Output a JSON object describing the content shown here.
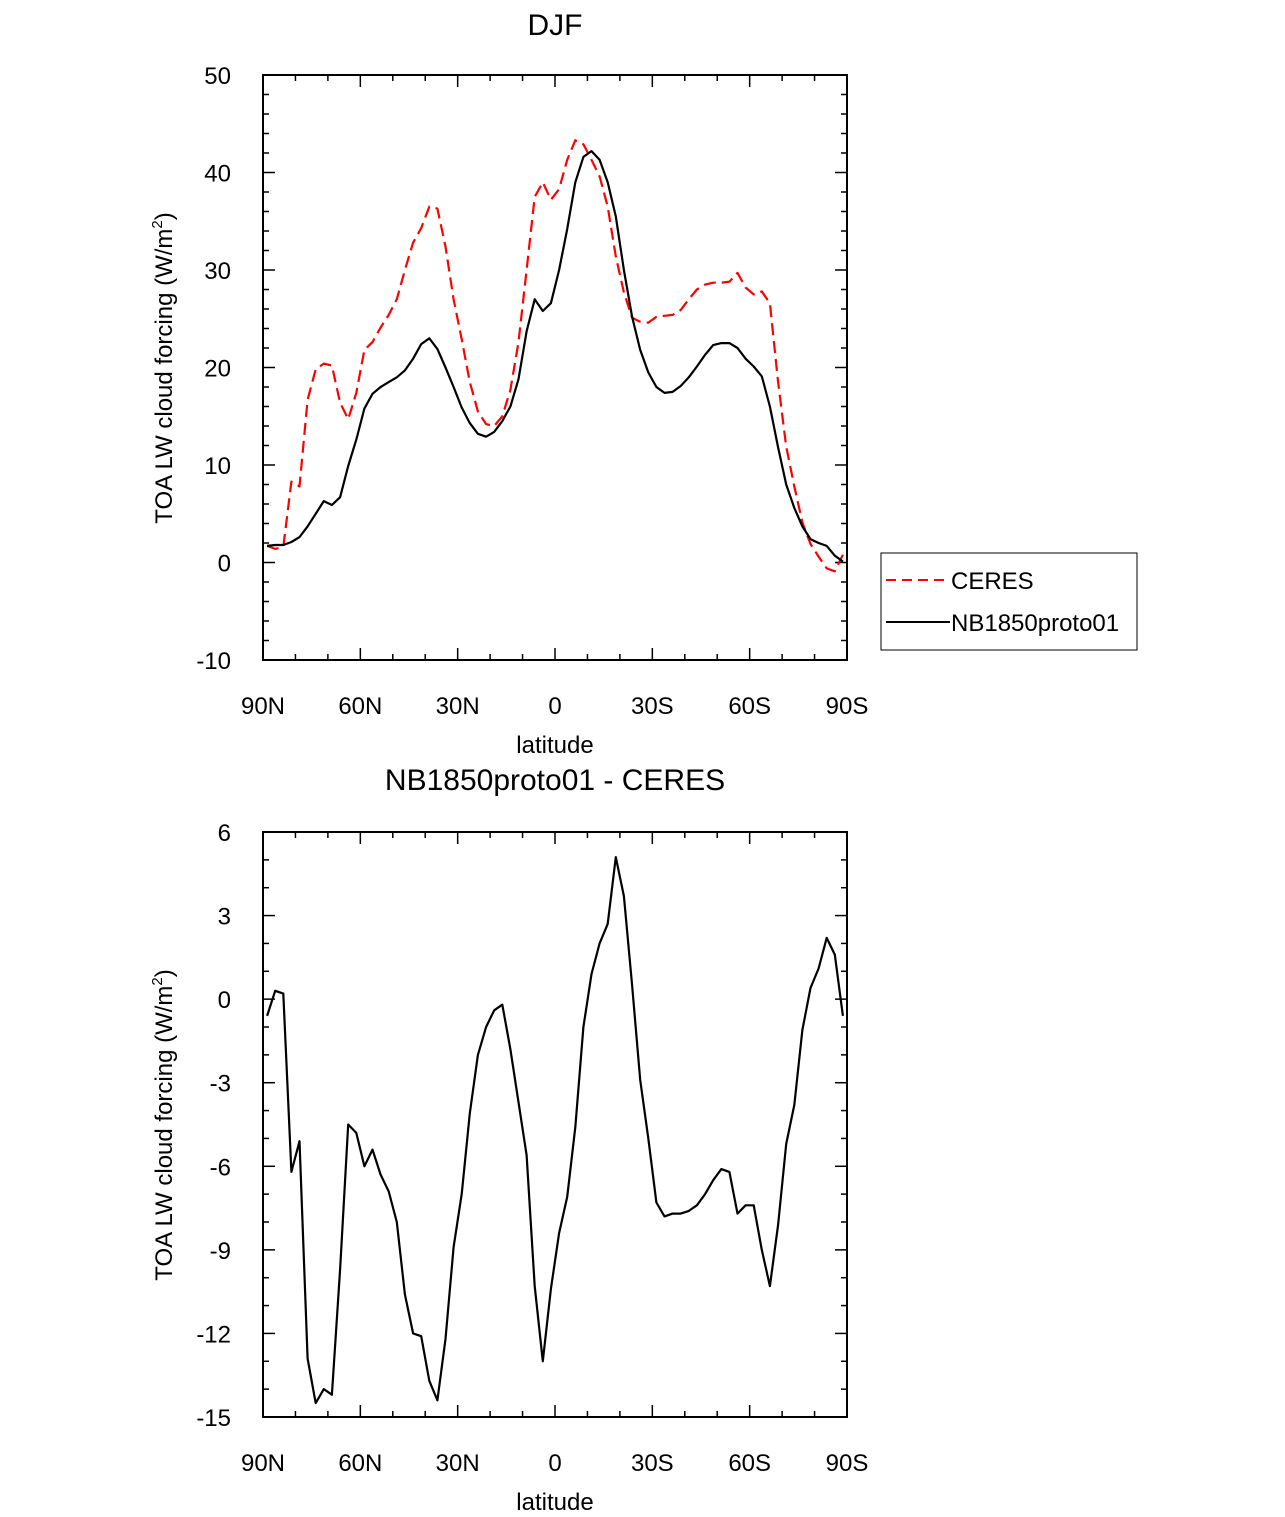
{
  "chart_data": [
    {
      "type": "line",
      "title": "DJF",
      "xlabel": "latitude",
      "ylabel": "TOA LW cloud forcing (W/m²)",
      "ylabel_parts": {
        "main": "TOA LW cloud forcing (W/m",
        "sup": "2",
        "end": ")"
      },
      "xlim": [
        90,
        -90
      ],
      "ylim": [
        -10,
        50
      ],
      "yticks": [
        -10,
        0,
        10,
        20,
        30,
        40,
        50
      ],
      "xticks": [
        {
          "v": 90,
          "label": "90N"
        },
        {
          "v": 60,
          "label": "60N"
        },
        {
          "v": 30,
          "label": "30N"
        },
        {
          "v": 0,
          "label": "0"
        },
        {
          "v": -30,
          "label": "30S"
        },
        {
          "v": -60,
          "label": "60S"
        },
        {
          "v": -90,
          "label": "90S"
        }
      ],
      "legend": {
        "placement": "right",
        "entries": [
          {
            "name": "CERES",
            "color": "#ff0000",
            "dash": true
          },
          {
            "name": "NB1850proto01",
            "color": "#000000",
            "dash": false
          }
        ]
      },
      "x": [
        88.75,
        86.25,
        83.75,
        81.25,
        78.75,
        76.25,
        73.75,
        71.25,
        68.75,
        66.25,
        63.75,
        61.25,
        58.75,
        56.25,
        53.75,
        51.25,
        48.75,
        46.25,
        43.75,
        41.25,
        38.75,
        36.25,
        33.75,
        31.25,
        28.75,
        26.25,
        23.75,
        21.25,
        18.75,
        16.25,
        13.75,
        11.25,
        8.75,
        6.25,
        3.75,
        1.25,
        -1.25,
        -3.75,
        -6.25,
        -8.75,
        -11.25,
        -13.75,
        -16.25,
        -18.75,
        -21.25,
        -23.75,
        -26.25,
        -28.75,
        -31.25,
        -33.75,
        -36.25,
        -38.75,
        -41.25,
        -43.75,
        -46.25,
        -48.75,
        -51.25,
        -53.75,
        -56.25,
        -58.75,
        -61.25,
        -63.75,
        -66.25,
        -68.75,
        -71.25,
        -73.75,
        -76.25,
        -78.75,
        -81.25,
        -83.75,
        -86.25,
        -88.75
      ],
      "series": [
        {
          "name": "CERES",
          "color": "#ff0000",
          "values": [
            1.7,
            1.4,
            1.6,
            8.3,
            7.8,
            16.7,
            19.8,
            20.4,
            20.2,
            16.4,
            14.7,
            17.4,
            21.8,
            22.6,
            24.1,
            25.4,
            27.0,
            30.0,
            32.8,
            34.3,
            36.5,
            36.3,
            32.4,
            27.0,
            22.9,
            18.5,
            15.5,
            14.2,
            14.0,
            15.0,
            17.7,
            22.6,
            30.0,
            37.5,
            39.0,
            37.2,
            38.3,
            41.3,
            43.3,
            42.9,
            41.3,
            39.6,
            36.5,
            31.4,
            27.7,
            25.1,
            24.7,
            24.6,
            25.2,
            25.3,
            25.4,
            25.9,
            27.0,
            28.0,
            28.5,
            28.7,
            28.7,
            28.8,
            29.7,
            28.2,
            27.5,
            27.8,
            26.6,
            18.5,
            11.9,
            7.8,
            4.1,
            1.9,
            0.6,
            -0.6,
            -0.9,
            0.8
          ]
        },
        {
          "name": "NB1850proto01",
          "color": "#000000",
          "values": [
            1.7,
            1.8,
            1.8,
            2.1,
            2.6,
            3.7,
            5.0,
            6.3,
            5.9,
            6.7,
            9.9,
            12.6,
            15.8,
            17.3,
            18.0,
            18.5,
            19.0,
            19.7,
            20.9,
            22.4,
            23.0,
            21.9,
            20.0,
            18.0,
            15.9,
            14.3,
            13.2,
            12.9,
            13.4,
            14.5,
            16.0,
            18.8,
            23.7,
            27.0,
            25.8,
            26.6,
            30.0,
            34.2,
            39.0,
            41.6,
            42.2,
            41.3,
            39.0,
            35.5,
            30.0,
            25.2,
            21.8,
            19.5,
            18.0,
            17.4,
            17.5,
            18.1,
            19.0,
            20.1,
            21.3,
            22.3,
            22.5,
            22.5,
            22.0,
            20.9,
            20.1,
            19.1,
            16.0,
            11.8,
            8.0,
            5.6,
            3.7,
            2.4,
            2.0,
            1.7,
            0.7,
            0.1
          ]
        }
      ]
    },
    {
      "type": "line",
      "title": "NB1850proto01 - CERES",
      "xlabel": "latitude",
      "ylabel": "TOA LW cloud forcing (W/m²)",
      "ylabel_parts": {
        "main": "TOA LW cloud forcing (W/m",
        "sup": "2",
        "end": ")"
      },
      "xlim": [
        90,
        -90
      ],
      "ylim": [
        -15,
        6
      ],
      "yticks": [
        -15,
        -12,
        -9,
        -6,
        -3,
        0,
        3,
        6
      ],
      "xticks": [
        {
          "v": 90,
          "label": "90N"
        },
        {
          "v": 60,
          "label": "60N"
        },
        {
          "v": 30,
          "label": "30N"
        },
        {
          "v": 0,
          "label": "0"
        },
        {
          "v": -30,
          "label": "30S"
        },
        {
          "v": -60,
          "label": "60S"
        },
        {
          "v": -90,
          "label": "90S"
        }
      ],
      "x": [
        88.75,
        86.25,
        83.75,
        81.25,
        78.75,
        76.25,
        73.75,
        71.25,
        68.75,
        66.25,
        63.75,
        61.25,
        58.75,
        56.25,
        53.75,
        51.25,
        48.75,
        46.25,
        43.75,
        41.25,
        38.75,
        36.25,
        33.75,
        31.25,
        28.75,
        26.25,
        23.75,
        21.25,
        18.75,
        16.25,
        13.75,
        11.25,
        8.75,
        6.25,
        3.75,
        1.25,
        -1.25,
        -3.75,
        -6.25,
        -8.75,
        -11.25,
        -13.75,
        -16.25,
        -18.75,
        -21.25,
        -23.75,
        -26.25,
        -28.75,
        -31.25,
        -33.75,
        -36.25,
        -38.75,
        -41.25,
        -43.75,
        -46.25,
        -48.75,
        -51.25,
        -53.75,
        -56.25,
        -58.75,
        -61.25,
        -63.75,
        -66.25,
        -68.75,
        -71.25,
        -73.75,
        -76.25,
        -78.75,
        -81.25,
        -83.75,
        -86.25,
        -88.75
      ],
      "series": [
        {
          "name": "NB1850proto01 - CERES",
          "color": "#000000",
          "values": [
            -0.6,
            0.3,
            0.2,
            -6.2,
            -5.1,
            -12.9,
            -14.5,
            -14.0,
            -14.2,
            -9.7,
            -4.5,
            -4.8,
            -6.0,
            -5.4,
            -6.3,
            -6.9,
            -8.0,
            -10.6,
            -12.0,
            -12.1,
            -13.7,
            -14.4,
            -12.2,
            -8.9,
            -7.0,
            -4.1,
            -2.0,
            -1.0,
            -0.4,
            -0.2,
            -1.8,
            -3.7,
            -5.6,
            -10.3,
            -13.0,
            -10.4,
            -8.4,
            -7.1,
            -4.6,
            -1.0,
            0.9,
            2.0,
            2.7,
            5.1,
            3.7,
            0.5,
            -2.9,
            -5.0,
            -7.3,
            -7.8,
            -7.7,
            -7.7,
            -7.6,
            -7.4,
            -7.0,
            -6.5,
            -6.1,
            -6.2,
            -7.7,
            -7.4,
            -7.4,
            -9.0,
            -10.3,
            -8.1,
            -5.2,
            -3.8,
            -1.1,
            0.4,
            1.1,
            2.2,
            1.6,
            -0.6
          ]
        }
      ]
    }
  ]
}
